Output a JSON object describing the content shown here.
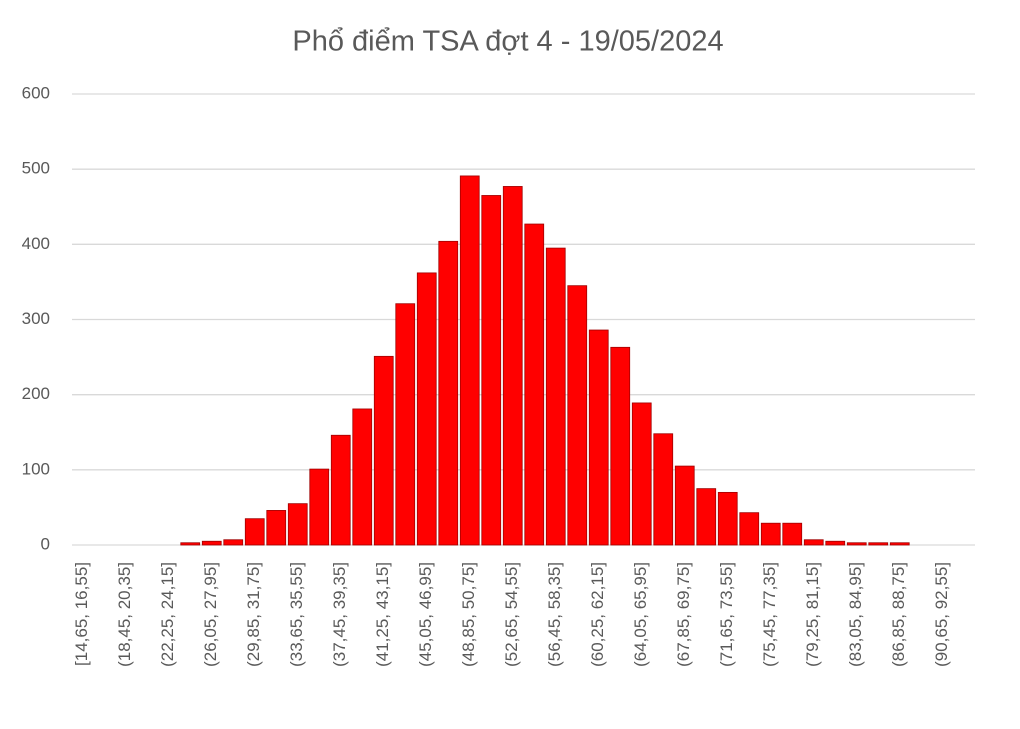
{
  "chart_data": {
    "type": "bar",
    "title": "Phổ điểm TSA đợt 4 - 19/05/2024",
    "categories": [
      "[14,65, 16,55]",
      null,
      "(18,45, 20,35]",
      null,
      "(22,25, 24,15]",
      null,
      "(26,05, 27,95]",
      null,
      "(29,85, 31,75]",
      null,
      "(33,65, 35,55]",
      null,
      "(37,45, 39,35]",
      null,
      "(41,25, 43,15]",
      null,
      "(45,05, 46,95]",
      null,
      "(48,85, 50,75]",
      null,
      "(52,65, 54,55]",
      null,
      "(56,45, 58,35]",
      null,
      "(60,25, 62,15]",
      null,
      "(64,05, 65,95]",
      null,
      "(67,85, 69,75]",
      null,
      "(71,65, 73,55]",
      null,
      "(75,45, 77,35]",
      null,
      "(79,25, 81,15]",
      null,
      "(83,05, 84,95]",
      null,
      "(86,85, 88,75]",
      null,
      "(90,65, 92,55]",
      null
    ],
    "values": [
      0,
      0,
      0,
      0,
      0,
      3,
      5,
      7,
      35,
      46,
      55,
      101,
      146,
      181,
      251,
      321,
      362,
      404,
      491,
      465,
      477,
      427,
      395,
      345,
      286,
      263,
      189,
      148,
      105,
      75,
      70,
      43,
      29,
      29,
      7,
      5,
      3,
      3,
      3,
      0,
      0,
      0
    ],
    "color": "#ff0000",
    "ylim": [
      0,
      600
    ],
    "yticks": [
      0,
      100,
      200,
      300,
      400,
      500,
      600
    ],
    "grid": true
  }
}
